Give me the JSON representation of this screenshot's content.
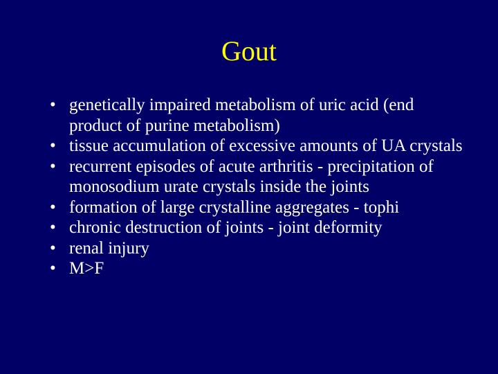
{
  "slide": {
    "title": "Gout",
    "title_color": "#ffff00",
    "background_color": "#000066",
    "text_color": "#ffffff",
    "title_fontsize": 40,
    "body_fontsize": 25,
    "bullets": [
      "genetically impaired metabolism of uric acid (end product of purine metabolism)",
      "tissue accumulation of excessive amounts of UA crystals",
      "recurrent episodes of acute arthritis - precipitation of monosodium urate crystals inside the joints",
      "formation of large crystalline aggregates - tophi",
      "chronic destruction of joints - joint deformity",
      "renal injury",
      "M>F"
    ]
  }
}
